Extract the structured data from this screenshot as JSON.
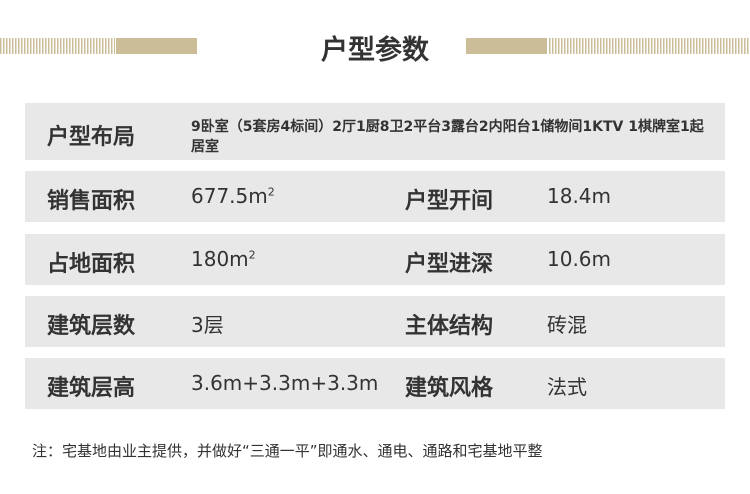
{
  "title": "户型参数",
  "colors": {
    "accent": "#cbbd98",
    "row_bg": "#e8e8e8"
  },
  "layout": {
    "label": "户型布局",
    "value": "9卧室（5套房4标间）2厅1厨8卫2平台3露台2内阳台1储物间1KTV 1棋牌室1起居室"
  },
  "rows": [
    {
      "label": "销售面积",
      "value": "677.5m",
      "sup": "2",
      "label2": "户型开间",
      "value2": "18.4m"
    },
    {
      "label": "占地面积",
      "value": "180m",
      "sup": "2",
      "label2": "户型进深",
      "value2": "10.6m"
    },
    {
      "label": "建筑层数",
      "value": "3层",
      "sup": "",
      "label2": "主体结构",
      "value2": "砖混"
    },
    {
      "label": "建筑层高",
      "value": "3.6m+3.3m+3.3m",
      "sup": "",
      "label2": "建筑风格",
      "value2": "法式"
    }
  ],
  "note": "注：宅基地由业主提供，并做好“三通一平”即通水、通电、通路和宅基地平整"
}
